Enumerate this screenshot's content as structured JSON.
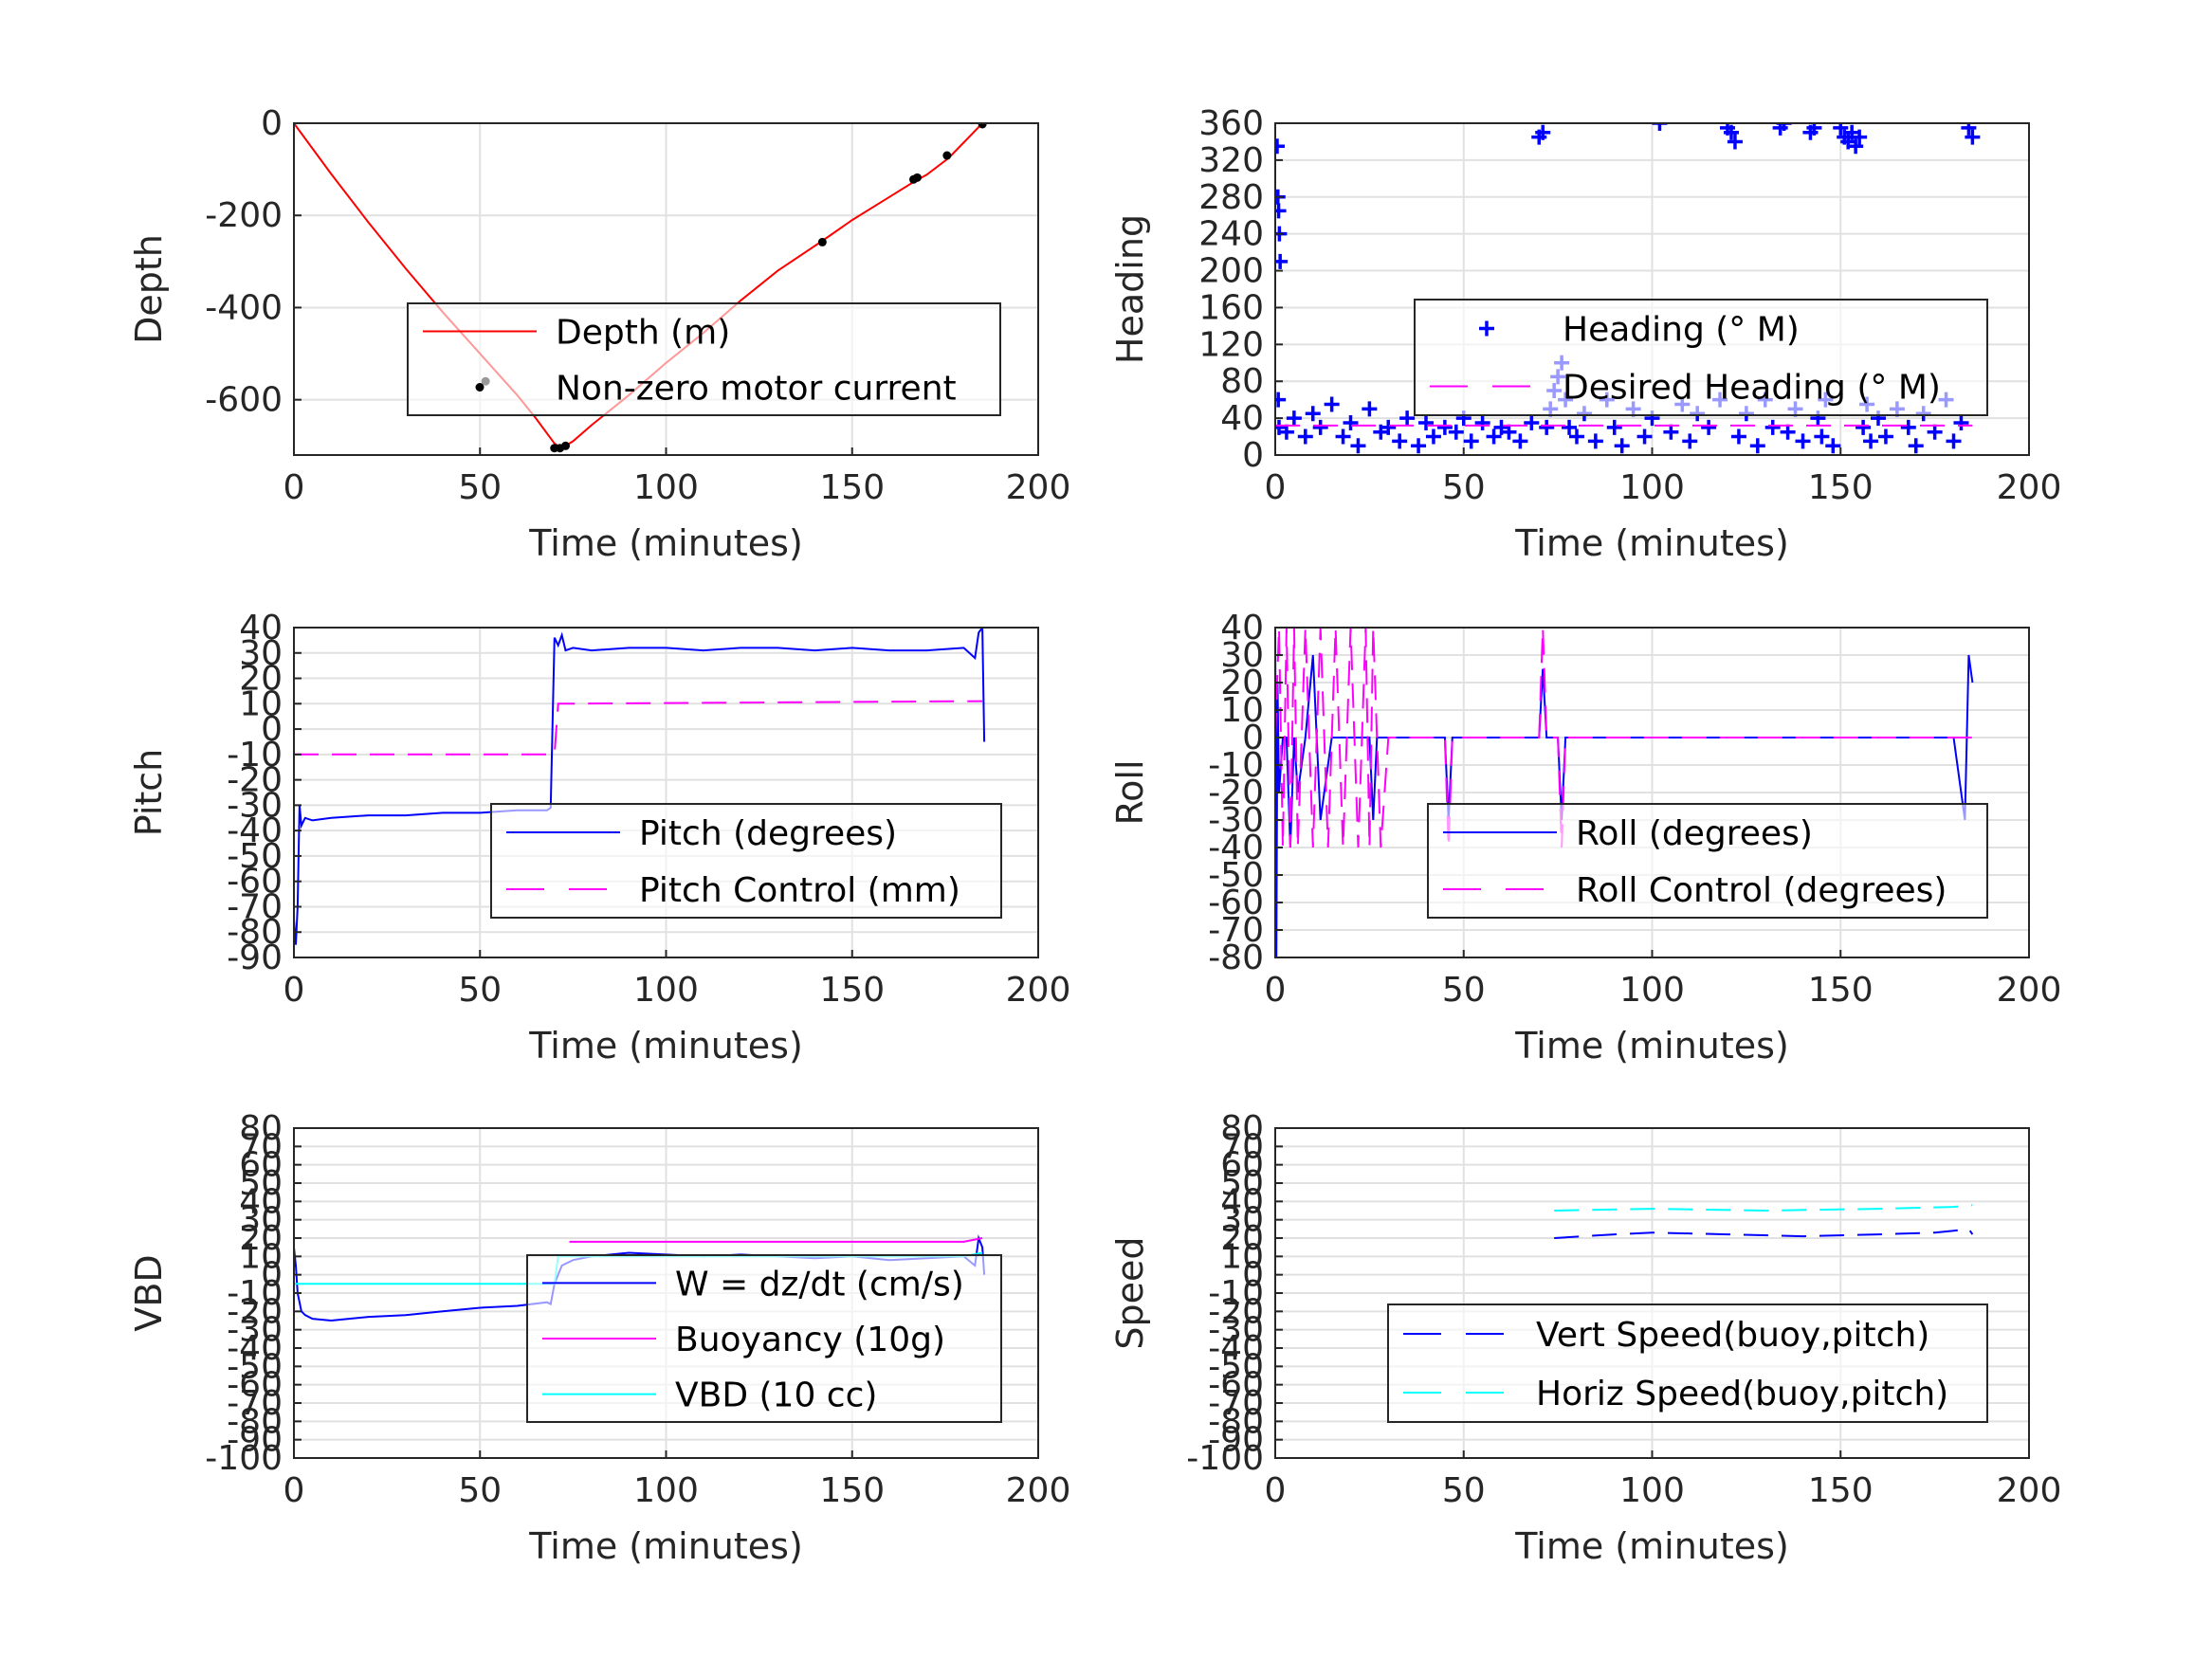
{
  "chart_data": [
    {
      "type": "line",
      "xlabel": "Time (minutes)",
      "ylabel": "Depth",
      "xlim": [
        0,
        200
      ],
      "ylim": [
        -720,
        0
      ],
      "xticks": [
        0,
        50,
        100,
        150,
        200
      ],
      "yticks": [
        0,
        -200,
        -400,
        -600
      ],
      "xtick_labels": [
        "0",
        "50",
        "100",
        "150",
        "200"
      ],
      "ytick_labels": [
        "0",
        "-200",
        "-400",
        "-600"
      ],
      "grid": true,
      "legend_position": "lower-right",
      "series": [
        {
          "name": "Depth (m)",
          "color": "#ff0000",
          "style": "solid",
          "marker": "none",
          "x": [
            0,
            10,
            20,
            30,
            40,
            50,
            60,
            65,
            70,
            72,
            75,
            80,
            90,
            100,
            110,
            120,
            130,
            142,
            150,
            160,
            167,
            170,
            176,
            185
          ],
          "y": [
            0,
            -110,
            -215,
            -315,
            -410,
            -500,
            -590,
            -640,
            -695,
            -705,
            -690,
            -655,
            -590,
            -520,
            -455,
            -385,
            -320,
            -255,
            -210,
            -160,
            -125,
            -112,
            -75,
            0
          ]
        },
        {
          "name": "Non-zero motor current",
          "color": "#000000",
          "style": "none",
          "marker": "dot",
          "x": [
            51.5,
            70,
            71.5,
            73,
            142,
            166.5,
            167.5,
            175.5,
            185
          ],
          "y": [
            -560,
            -705,
            -705,
            -700,
            -258,
            -122,
            -118,
            -70,
            -2
          ]
        }
      ]
    },
    {
      "type": "scatter",
      "xlabel": "Time (minutes)",
      "ylabel": "Heading",
      "xlim": [
        0,
        200
      ],
      "ylim": [
        0,
        360
      ],
      "xticks": [
        0,
        50,
        100,
        150,
        200
      ],
      "yticks": [
        0,
        40,
        80,
        120,
        160,
        200,
        240,
        280,
        320,
        360
      ],
      "xtick_labels": [
        "0",
        "50",
        "100",
        "150",
        "200"
      ],
      "ytick_labels": [
        "0",
        "40",
        "80",
        "120",
        "160",
        "200",
        "240",
        "280",
        "320",
        "360"
      ],
      "grid": true,
      "legend_position": "center-right",
      "series": [
        {
          "name": "Heading (° M)",
          "color": "#0000ff",
          "marker": "plus",
          "style": "none",
          "x": [
            0.5,
            0.7,
            0.9,
            1.1,
            1.3,
            0.8,
            1.0,
            3,
            5,
            8,
            10,
            12,
            15,
            18,
            20,
            22,
            25,
            28,
            30,
            33,
            35,
            38,
            40,
            42,
            45,
            48,
            50,
            52,
            55,
            58,
            60,
            62,
            65,
            68,
            70,
            71,
            72,
            73,
            74,
            75,
            76,
            77,
            78,
            80,
            82,
            85,
            88,
            90,
            92,
            95,
            98,
            100,
            102,
            105,
            108,
            110,
            112,
            115,
            118,
            120,
            121,
            122,
            123,
            125,
            128,
            130,
            132,
            134,
            135,
            136,
            138,
            140,
            142,
            143,
            144,
            145,
            146,
            148,
            150,
            151,
            152,
            153,
            154,
            155,
            156,
            157,
            158,
            160,
            162,
            165,
            168,
            170,
            172,
            175,
            178,
            180,
            182,
            184,
            185
          ],
          "y": [
            335,
            280,
            265,
            240,
            210,
            60,
            30,
            25,
            40,
            20,
            45,
            30,
            55,
            20,
            35,
            10,
            50,
            25,
            30,
            15,
            40,
            10,
            35,
            20,
            30,
            25,
            40,
            15,
            35,
            20,
            30,
            25,
            15,
            35,
            345,
            350,
            30,
            50,
            70,
            85,
            100,
            60,
            30,
            20,
            45,
            15,
            60,
            30,
            10,
            50,
            20,
            40,
            360,
            25,
            55,
            15,
            45,
            30,
            60,
            355,
            350,
            340,
            20,
            45,
            10,
            60,
            30,
            355,
            360,
            25,
            50,
            15,
            350,
            355,
            40,
            20,
            60,
            10,
            355,
            345,
            340,
            350,
            335,
            345,
            30,
            55,
            15,
            40,
            20,
            50,
            30,
            10,
            45,
            25,
            60,
            15,
            35,
            355,
            345
          ]
        },
        {
          "name": "Desired Heading (° M)",
          "color": "#ff00ff",
          "style": "dashed",
          "marker": "none",
          "x": [
            0,
            185
          ],
          "y": [
            32,
            32
          ]
        }
      ]
    },
    {
      "type": "line",
      "xlabel": "Time (minutes)",
      "ylabel": "Pitch",
      "xlim": [
        0,
        200
      ],
      "ylim": [
        -90,
        40
      ],
      "xticks": [
        0,
        50,
        100,
        150,
        200
      ],
      "yticks": [
        40,
        30,
        20,
        10,
        0,
        -10,
        -20,
        -30,
        -40,
        -50,
        -60,
        -70,
        -80,
        -90
      ],
      "xtick_labels": [
        "0",
        "50",
        "100",
        "150",
        "200"
      ],
      "ytick_labels": [
        "40",
        "30",
        "20",
        "10",
        "0",
        "-10",
        "-20",
        "-30",
        "-40",
        "-50",
        "-60",
        "-70",
        "-80",
        "-90"
      ],
      "grid": true,
      "legend_position": "lower-right",
      "series": [
        {
          "name": "Pitch (degrees)",
          "color": "#0000ff",
          "style": "solid",
          "marker": "none",
          "x": [
            0,
            0.5,
            1,
            1.5,
            2,
            3,
            5,
            10,
            20,
            30,
            40,
            50,
            60,
            68,
            69,
            70,
            71,
            72,
            73,
            75,
            80,
            90,
            100,
            110,
            120,
            130,
            140,
            150,
            160,
            170,
            180,
            183,
            184,
            185,
            185.5
          ],
          "y": [
            -75,
            -85,
            -70,
            -30,
            -38,
            -35,
            -36,
            -35,
            -34,
            -34,
            -33,
            -33,
            -32,
            -32,
            -31,
            36,
            33,
            37,
            31,
            32,
            31,
            32,
            32,
            31,
            32,
            32,
            31,
            32,
            31,
            31,
            32,
            28,
            38,
            40,
            -5
          ]
        },
        {
          "name": "Pitch Control (mm)",
          "color": "#ff00ff",
          "style": "dashed",
          "marker": "none",
          "x": [
            0,
            1,
            2,
            70,
            71,
            185
          ],
          "y": [
            -10,
            -10,
            -10,
            -10,
            10,
            11
          ]
        }
      ]
    },
    {
      "type": "line",
      "xlabel": "Time (minutes)",
      "ylabel": "Roll",
      "xlim": [
        0,
        200
      ],
      "ylim": [
        -80,
        40
      ],
      "xticks": [
        0,
        50,
        100,
        150,
        200
      ],
      "yticks": [
        40,
        30,
        20,
        10,
        0,
        -10,
        -20,
        -30,
        -40,
        -50,
        -60,
        -70,
        -80
      ],
      "xtick_labels": [
        "0",
        "50",
        "100",
        "150",
        "200"
      ],
      "ytick_labels": [
        "40",
        "30",
        "20",
        "10",
        "0",
        "-10",
        "-20",
        "-30",
        "-40",
        "-50",
        "-60",
        "-70",
        "-80"
      ],
      "grid": true,
      "legend_position": "lower-right",
      "series": [
        {
          "name": "Roll (degrees)",
          "color": "#0000ff",
          "style": "solid",
          "marker": "none",
          "x": [
            0,
            0.3,
            0.6,
            1,
            2,
            3,
            4,
            5,
            6,
            8,
            10,
            12,
            15,
            20,
            25,
            26,
            27,
            30,
            40,
            45,
            46,
            47,
            50,
            60,
            70,
            71,
            72,
            75,
            76,
            77,
            80,
            90,
            100,
            110,
            120,
            130,
            140,
            150,
            160,
            170,
            180,
            183,
            184,
            185
          ],
          "y": [
            40,
            -80,
            20,
            -20,
            0,
            0,
            -40,
            0,
            -20,
            0,
            30,
            -30,
            0,
            0,
            0,
            -30,
            0,
            0,
            0,
            0,
            -30,
            0,
            0,
            0,
            0,
            25,
            0,
            0,
            -30,
            0,
            0,
            0,
            0,
            0,
            0,
            0,
            0,
            0,
            0,
            0,
            0,
            -30,
            30,
            20
          ]
        },
        {
          "name": "Roll Control (degrees)",
          "color": "#ff00ff",
          "style": "dashed",
          "marker": "none",
          "x": [
            0,
            1,
            2,
            3,
            4,
            5,
            6,
            8,
            10,
            12,
            14,
            16,
            18,
            20,
            22,
            24,
            25,
            26,
            28,
            30,
            40,
            45,
            46,
            47,
            50,
            60,
            70,
            71,
            72,
            75,
            76,
            77,
            80,
            90,
            100,
            110,
            120,
            130,
            140,
            150,
            160,
            170,
            180,
            185
          ],
          "y": [
            0,
            40,
            -40,
            40,
            -40,
            40,
            -40,
            40,
            -40,
            40,
            -40,
            40,
            -40,
            40,
            -40,
            40,
            -40,
            40,
            -40,
            0,
            0,
            0,
            -40,
            0,
            0,
            0,
            0,
            40,
            0,
            0,
            -40,
            0,
            0,
            0,
            0,
            0,
            0,
            0,
            0,
            0,
            0,
            0,
            0,
            0
          ]
        }
      ]
    },
    {
      "type": "line",
      "xlabel": "Time (minutes)",
      "ylabel": "VBD",
      "xlim": [
        0,
        200
      ],
      "ylim": [
        -100,
        80
      ],
      "xticks": [
        0,
        50,
        100,
        150,
        200
      ],
      "yticks": [
        80,
        70,
        60,
        50,
        40,
        30,
        20,
        10,
        0,
        -10,
        -20,
        -30,
        -40,
        -50,
        -60,
        -70,
        -80,
        -90,
        -100
      ],
      "xtick_labels": [
        "0",
        "50",
        "100",
        "150",
        "200"
      ],
      "ytick_labels": [
        "80",
        "70",
        "60",
        "50",
        "40",
        "30",
        "20",
        "10",
        "0",
        "-10",
        "-20",
        "-30",
        "-40",
        "-50",
        "-60",
        "-70",
        "-80",
        "-90",
        "-100"
      ],
      "grid": true,
      "legend_position": "lower-right",
      "series": [
        {
          "name": "W = dz/dt (cm/s)",
          "color": "#0000ff",
          "style": "solid",
          "marker": "none",
          "x": [
            0,
            0.5,
            1,
            2,
            3,
            5,
            10,
            20,
            30,
            40,
            50,
            60,
            68,
            69,
            70,
            72,
            75,
            80,
            90,
            100,
            110,
            120,
            130,
            140,
            150,
            160,
            170,
            180,
            183,
            184,
            185,
            185.5
          ],
          "y": [
            15,
            5,
            -10,
            -20,
            -22,
            -24,
            -25,
            -23,
            -22,
            -20,
            -18,
            -17,
            -15,
            -16,
            -5,
            5,
            8,
            10,
            12,
            11,
            10,
            11,
            10,
            9,
            10,
            8,
            9,
            10,
            5,
            20,
            15,
            0
          ]
        },
        {
          "name": "Buoyancy (10g)",
          "color": "#ff00ff",
          "style": "solid",
          "marker": "none",
          "x": [
            74,
            100,
            150,
            180,
            185
          ],
          "y": [
            18,
            18,
            18,
            18,
            20
          ]
        },
        {
          "name": "VBD (10 cc)",
          "color": "#00ffff",
          "style": "solid",
          "marker": "none",
          "x": [
            0,
            1,
            70,
            71,
            180,
            185
          ],
          "y": [
            -5,
            -5,
            -5,
            10,
            10,
            12
          ]
        }
      ]
    },
    {
      "type": "line",
      "xlabel": "Time (minutes)",
      "ylabel": "Speed",
      "xlim": [
        0,
        200
      ],
      "ylim": [
        -100,
        80
      ],
      "xticks": [
        0,
        50,
        100,
        150,
        200
      ],
      "yticks": [
        80,
        70,
        60,
        50,
        40,
        30,
        20,
        10,
        0,
        -10,
        -20,
        -30,
        -40,
        -50,
        -60,
        -70,
        -80,
        -90,
        -100
      ],
      "xtick_labels": [
        "0",
        "50",
        "100",
        "150",
        "200"
      ],
      "ytick_labels": [
        "80",
        "70",
        "60",
        "50",
        "40",
        "30",
        "20",
        "10",
        "0",
        "-10",
        "-20",
        "-30",
        "-40",
        "-50",
        "-60",
        "-70",
        "-80",
        "-90",
        "-100"
      ],
      "grid": true,
      "legend_position": "lower-right",
      "series": [
        {
          "name": "Vert Speed(buoy,pitch)",
          "color": "#0000ff",
          "style": "dashed",
          "marker": "none",
          "x": [
            74,
            90,
            100,
            120,
            140,
            160,
            175,
            180,
            184,
            185
          ],
          "y": [
            20,
            22,
            23,
            22,
            21,
            22,
            23,
            24,
            25,
            22
          ]
        },
        {
          "name": "Horiz Speed(buoy,pitch)",
          "color": "#00ffff",
          "style": "dashed",
          "marker": "none",
          "x": [
            74,
            100,
            130,
            160,
            180,
            185
          ],
          "y": [
            35,
            36,
            35,
            36,
            37,
            38
          ]
        }
      ]
    }
  ]
}
